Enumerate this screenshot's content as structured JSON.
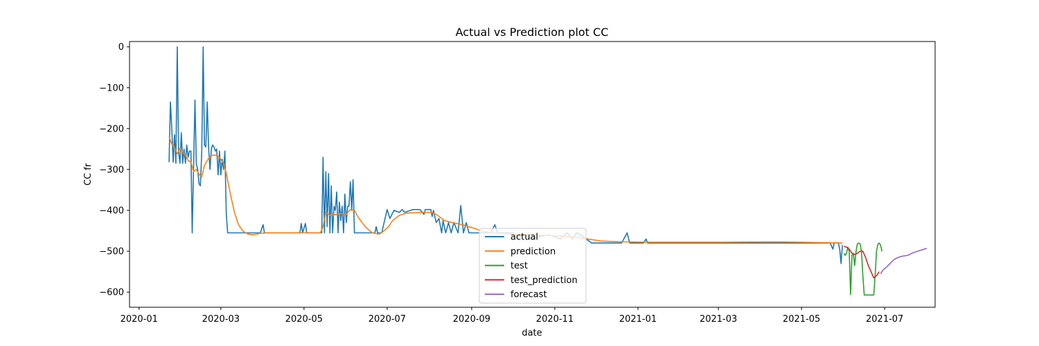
{
  "chart_data": {
    "type": "line",
    "title": "Actual vs Prediction plot CC",
    "xlabel": "date",
    "ylabel": "CC fr",
    "x_axis": "date",
    "xlim": [
      "2019-12-25",
      "2021-08-07"
    ],
    "ylim": [
      -637,
      13
    ],
    "xticks": [
      "2020-01",
      "2020-03",
      "2020-05",
      "2020-07",
      "2020-09",
      "2020-11",
      "2021-01",
      "2021-03",
      "2021-05",
      "2021-07"
    ],
    "yticks": [
      0,
      -100,
      -200,
      -300,
      -400,
      -500,
      -600
    ],
    "grid": false,
    "legend_position": "lower-center",
    "series": [
      {
        "name": "actual",
        "color": "#1f77b4",
        "points": [
          [
            "2020-01-23",
            -282
          ],
          [
            "2020-01-24",
            -135
          ],
          [
            "2020-01-25",
            -200
          ],
          [
            "2020-01-26",
            -282
          ],
          [
            "2020-01-27",
            -215
          ],
          [
            "2020-01-28",
            -285
          ],
          [
            "2020-01-29",
            0
          ],
          [
            "2020-01-30",
            -255
          ],
          [
            "2020-01-31",
            -285
          ],
          [
            "2020-02-01",
            -210
          ],
          [
            "2020-02-02",
            -285
          ],
          [
            "2020-02-03",
            -250
          ],
          [
            "2020-02-04",
            -285
          ],
          [
            "2020-02-05",
            -240
          ],
          [
            "2020-02-06",
            -270
          ],
          [
            "2020-02-07",
            -255
          ],
          [
            "2020-02-08",
            -255
          ],
          [
            "2020-02-09",
            -455
          ],
          [
            "2020-02-10",
            -290
          ],
          [
            "2020-02-11",
            -130
          ],
          [
            "2020-02-12",
            -285
          ],
          [
            "2020-02-13",
            -300
          ],
          [
            "2020-02-14",
            -335
          ],
          [
            "2020-02-15",
            -340
          ],
          [
            "2020-02-16",
            -255
          ],
          [
            "2020-02-17",
            0
          ],
          [
            "2020-02-18",
            -240
          ],
          [
            "2020-02-19",
            -245
          ],
          [
            "2020-02-20",
            -135
          ],
          [
            "2020-02-21",
            -245
          ],
          [
            "2020-02-22",
            -300
          ],
          [
            "2020-02-23",
            -250
          ],
          [
            "2020-02-24",
            -240
          ],
          [
            "2020-02-25",
            -245
          ],
          [
            "2020-02-26",
            -255
          ],
          [
            "2020-02-27",
            -250
          ],
          [
            "2020-02-28",
            -313
          ],
          [
            "2020-02-29",
            -255
          ],
          [
            "2020-03-01",
            -313
          ],
          [
            "2020-03-02",
            -275
          ],
          [
            "2020-03-03",
            -300
          ],
          [
            "2020-03-04",
            -255
          ],
          [
            "2020-03-05",
            -410
          ],
          [
            "2020-03-06",
            -455
          ],
          [
            "2020-03-20",
            -455
          ],
          [
            "2020-03-30",
            -455
          ],
          [
            "2020-04-01",
            -435
          ],
          [
            "2020-04-02",
            -455
          ],
          [
            "2020-04-28",
            -455
          ],
          [
            "2020-04-29",
            -432
          ],
          [
            "2020-04-30",
            -455
          ],
          [
            "2020-05-02",
            -432
          ],
          [
            "2020-05-03",
            -455
          ],
          [
            "2020-05-14",
            -455
          ],
          [
            "2020-05-15",
            -270
          ],
          [
            "2020-05-16",
            -455
          ],
          [
            "2020-05-17",
            -305
          ],
          [
            "2020-05-18",
            -440
          ],
          [
            "2020-05-19",
            -310
          ],
          [
            "2020-05-20",
            -455
          ],
          [
            "2020-05-21",
            -340
          ],
          [
            "2020-05-22",
            -455
          ],
          [
            "2020-05-23",
            -390
          ],
          [
            "2020-05-24",
            -400
          ],
          [
            "2020-05-25",
            -355
          ],
          [
            "2020-05-26",
            -455
          ],
          [
            "2020-05-27",
            -380
          ],
          [
            "2020-05-28",
            -425
          ],
          [
            "2020-05-29",
            -390
          ],
          [
            "2020-05-30",
            -455
          ],
          [
            "2020-05-31",
            -360
          ],
          [
            "2020-06-01",
            -430
          ],
          [
            "2020-06-02",
            -390
          ],
          [
            "2020-06-03",
            -390
          ],
          [
            "2020-06-04",
            -330
          ],
          [
            "2020-06-05",
            -400
          ],
          [
            "2020-06-06",
            -325
          ],
          [
            "2020-06-07",
            -455
          ],
          [
            "2020-06-20",
            -455
          ],
          [
            "2020-06-22",
            -455
          ],
          [
            "2020-06-23",
            -440
          ],
          [
            "2020-06-24",
            -455
          ],
          [
            "2020-06-27",
            -455
          ],
          [
            "2020-07-01",
            -398
          ],
          [
            "2020-07-03",
            -420
          ],
          [
            "2020-07-06",
            -400
          ],
          [
            "2020-07-10",
            -405
          ],
          [
            "2020-07-12",
            -398
          ],
          [
            "2020-07-14",
            -405
          ],
          [
            "2020-07-20",
            -398
          ],
          [
            "2020-07-25",
            -398
          ],
          [
            "2020-07-28",
            -410
          ],
          [
            "2020-07-29",
            -398
          ],
          [
            "2020-08-02",
            -398
          ],
          [
            "2020-08-03",
            -415
          ],
          [
            "2020-08-04",
            -400
          ],
          [
            "2020-08-06",
            -430
          ],
          [
            "2020-08-08",
            -420
          ],
          [
            "2020-08-10",
            -455
          ],
          [
            "2020-08-11",
            -425
          ],
          [
            "2020-08-13",
            -455
          ],
          [
            "2020-08-15",
            -430
          ],
          [
            "2020-08-17",
            -455
          ],
          [
            "2020-08-19",
            -430
          ],
          [
            "2020-08-22",
            -455
          ],
          [
            "2020-08-24",
            -388
          ],
          [
            "2020-08-26",
            -455
          ],
          [
            "2020-08-28",
            -430
          ],
          [
            "2020-08-30",
            -455
          ],
          [
            "2020-09-05",
            -455
          ],
          [
            "2020-09-15",
            -455
          ],
          [
            "2020-09-18",
            -435
          ],
          [
            "2020-09-20",
            -455
          ],
          [
            "2020-09-28",
            -455
          ],
          [
            "2020-10-01",
            -455
          ],
          [
            "2020-10-05",
            -465
          ],
          [
            "2020-10-10",
            -460
          ],
          [
            "2020-10-15",
            -470
          ],
          [
            "2020-10-20",
            -465
          ],
          [
            "2020-10-28",
            -460
          ],
          [
            "2020-11-05",
            -470
          ],
          [
            "2020-11-10",
            -455
          ],
          [
            "2020-11-14",
            -470
          ],
          [
            "2020-11-17",
            -455
          ],
          [
            "2020-11-20",
            -460
          ],
          [
            "2020-11-28",
            -480
          ],
          [
            "2020-12-10",
            -480
          ],
          [
            "2020-12-20",
            -480
          ],
          [
            "2020-12-24",
            -455
          ],
          [
            "2020-12-26",
            -480
          ],
          [
            "2021-01-05",
            -480
          ],
          [
            "2021-01-07",
            -470
          ],
          [
            "2021-01-08",
            -480
          ],
          [
            "2021-02-01",
            -480
          ],
          [
            "2021-03-01",
            -480
          ],
          [
            "2021-04-01",
            -480
          ],
          [
            "2021-05-01",
            -480
          ],
          [
            "2021-05-20",
            -480
          ],
          [
            "2021-05-22",
            -480
          ],
          [
            "2021-05-24",
            -495
          ],
          [
            "2021-05-25",
            -480
          ],
          [
            "2021-05-28",
            -480
          ],
          [
            "2021-05-29",
            -495
          ],
          [
            "2021-05-30",
            -530
          ],
          [
            "2021-05-31",
            -485
          ]
        ]
      },
      {
        "name": "prediction",
        "color": "#ff7f0e",
        "points": [
          [
            "2020-01-23",
            -220
          ],
          [
            "2020-01-25",
            -238
          ],
          [
            "2020-01-27",
            -245
          ],
          [
            "2020-01-29",
            -262
          ],
          [
            "2020-01-31",
            -248
          ],
          [
            "2020-02-02",
            -258
          ],
          [
            "2020-02-04",
            -265
          ],
          [
            "2020-02-06",
            -278
          ],
          [
            "2020-02-08",
            -282
          ],
          [
            "2020-02-10",
            -305
          ],
          [
            "2020-02-12",
            -300
          ],
          [
            "2020-02-14",
            -312
          ],
          [
            "2020-02-16",
            -318
          ],
          [
            "2020-02-18",
            -290
          ],
          [
            "2020-02-20",
            -278
          ],
          [
            "2020-02-22",
            -268
          ],
          [
            "2020-02-24",
            -265
          ],
          [
            "2020-02-26",
            -265
          ],
          [
            "2020-02-28",
            -268
          ],
          [
            "2020-03-01",
            -275
          ],
          [
            "2020-03-03",
            -285
          ],
          [
            "2020-03-05",
            -310
          ],
          [
            "2020-03-08",
            -360
          ],
          [
            "2020-03-11",
            -405
          ],
          [
            "2020-03-14",
            -435
          ],
          [
            "2020-03-17",
            -450
          ],
          [
            "2020-03-21",
            -458
          ],
          [
            "2020-03-25",
            -460
          ],
          [
            "2020-03-30",
            -456
          ],
          [
            "2020-04-05",
            -455
          ],
          [
            "2020-05-13",
            -455
          ],
          [
            "2020-05-15",
            -440
          ],
          [
            "2020-05-17",
            -405
          ],
          [
            "2020-05-20",
            -412
          ],
          [
            "2020-05-24",
            -410
          ],
          [
            "2020-05-28",
            -408
          ],
          [
            "2020-06-01",
            -410
          ],
          [
            "2020-06-04",
            -398
          ],
          [
            "2020-06-07",
            -400
          ],
          [
            "2020-06-10",
            -418
          ],
          [
            "2020-06-15",
            -440
          ],
          [
            "2020-06-20",
            -455
          ],
          [
            "2020-06-25",
            -458
          ],
          [
            "2020-06-28",
            -452
          ],
          [
            "2020-07-02",
            -440
          ],
          [
            "2020-07-05",
            -425
          ],
          [
            "2020-07-10",
            -412
          ],
          [
            "2020-07-15",
            -407
          ],
          [
            "2020-07-25",
            -405
          ],
          [
            "2020-08-03",
            -405
          ],
          [
            "2020-08-07",
            -412
          ],
          [
            "2020-08-12",
            -425
          ],
          [
            "2020-08-18",
            -430
          ],
          [
            "2020-08-25",
            -435
          ],
          [
            "2020-09-01",
            -442
          ],
          [
            "2020-09-08",
            -450
          ],
          [
            "2020-09-15",
            -455
          ],
          [
            "2020-10-01",
            -458
          ],
          [
            "2020-10-15",
            -460
          ],
          [
            "2020-11-01",
            -462
          ],
          [
            "2020-11-15",
            -465
          ],
          [
            "2020-11-25",
            -470
          ],
          [
            "2020-12-05",
            -475
          ],
          [
            "2020-12-20",
            -477
          ],
          [
            "2021-01-10",
            -478
          ],
          [
            "2021-03-01",
            -478
          ],
          [
            "2021-04-12",
            -477
          ],
          [
            "2021-05-01",
            -478
          ],
          [
            "2021-05-31",
            -480
          ]
        ]
      },
      {
        "name": "test",
        "color": "#2ca02c",
        "points": [
          [
            "2021-06-01",
            -505
          ],
          [
            "2021-06-02",
            -510
          ],
          [
            "2021-06-03",
            -505
          ],
          [
            "2021-06-04",
            -490
          ],
          [
            "2021-06-05",
            -500
          ],
          [
            "2021-06-06",
            -606
          ],
          [
            "2021-06-07",
            -510
          ],
          [
            "2021-06-08",
            -505
          ],
          [
            "2021-06-09",
            -535
          ],
          [
            "2021-06-10",
            -500
          ],
          [
            "2021-06-11",
            -482
          ],
          [
            "2021-06-12",
            -480
          ],
          [
            "2021-06-13",
            -482
          ],
          [
            "2021-06-14",
            -500
          ],
          [
            "2021-06-15",
            -560
          ],
          [
            "2021-06-16",
            -607
          ],
          [
            "2021-06-19",
            -607
          ],
          [
            "2021-06-20",
            -607
          ],
          [
            "2021-06-22",
            -607
          ],
          [
            "2021-06-23",
            -607
          ],
          [
            "2021-06-24",
            -560
          ],
          [
            "2021-06-25",
            -500
          ],
          [
            "2021-06-26",
            -483
          ],
          [
            "2021-06-27",
            -480
          ],
          [
            "2021-06-28",
            -485
          ],
          [
            "2021-06-29",
            -500
          ]
        ]
      },
      {
        "name": "test_prediction",
        "color": "#d62728",
        "points": [
          [
            "2021-06-01",
            -488
          ],
          [
            "2021-06-03",
            -490
          ],
          [
            "2021-06-05",
            -495
          ],
          [
            "2021-06-07",
            -505
          ],
          [
            "2021-06-09",
            -508
          ],
          [
            "2021-06-11",
            -505
          ],
          [
            "2021-06-13",
            -500
          ],
          [
            "2021-06-15",
            -500
          ],
          [
            "2021-06-17",
            -515
          ],
          [
            "2021-06-19",
            -535
          ],
          [
            "2021-06-21",
            -550
          ],
          [
            "2021-06-23",
            -565
          ],
          [
            "2021-06-25",
            -560
          ],
          [
            "2021-06-27",
            -550
          ]
        ]
      },
      {
        "name": "forecast",
        "color": "#9467bd",
        "points": [
          [
            "2021-06-28",
            -555
          ],
          [
            "2021-06-30",
            -545
          ],
          [
            "2021-07-02",
            -540
          ],
          [
            "2021-07-05",
            -530
          ],
          [
            "2021-07-08",
            -520
          ],
          [
            "2021-07-11",
            -515
          ],
          [
            "2021-07-14",
            -512
          ],
          [
            "2021-07-18",
            -510
          ],
          [
            "2021-07-21",
            -505
          ],
          [
            "2021-07-25",
            -500
          ],
          [
            "2021-07-29",
            -496
          ],
          [
            "2021-08-01",
            -493
          ]
        ]
      }
    ]
  }
}
